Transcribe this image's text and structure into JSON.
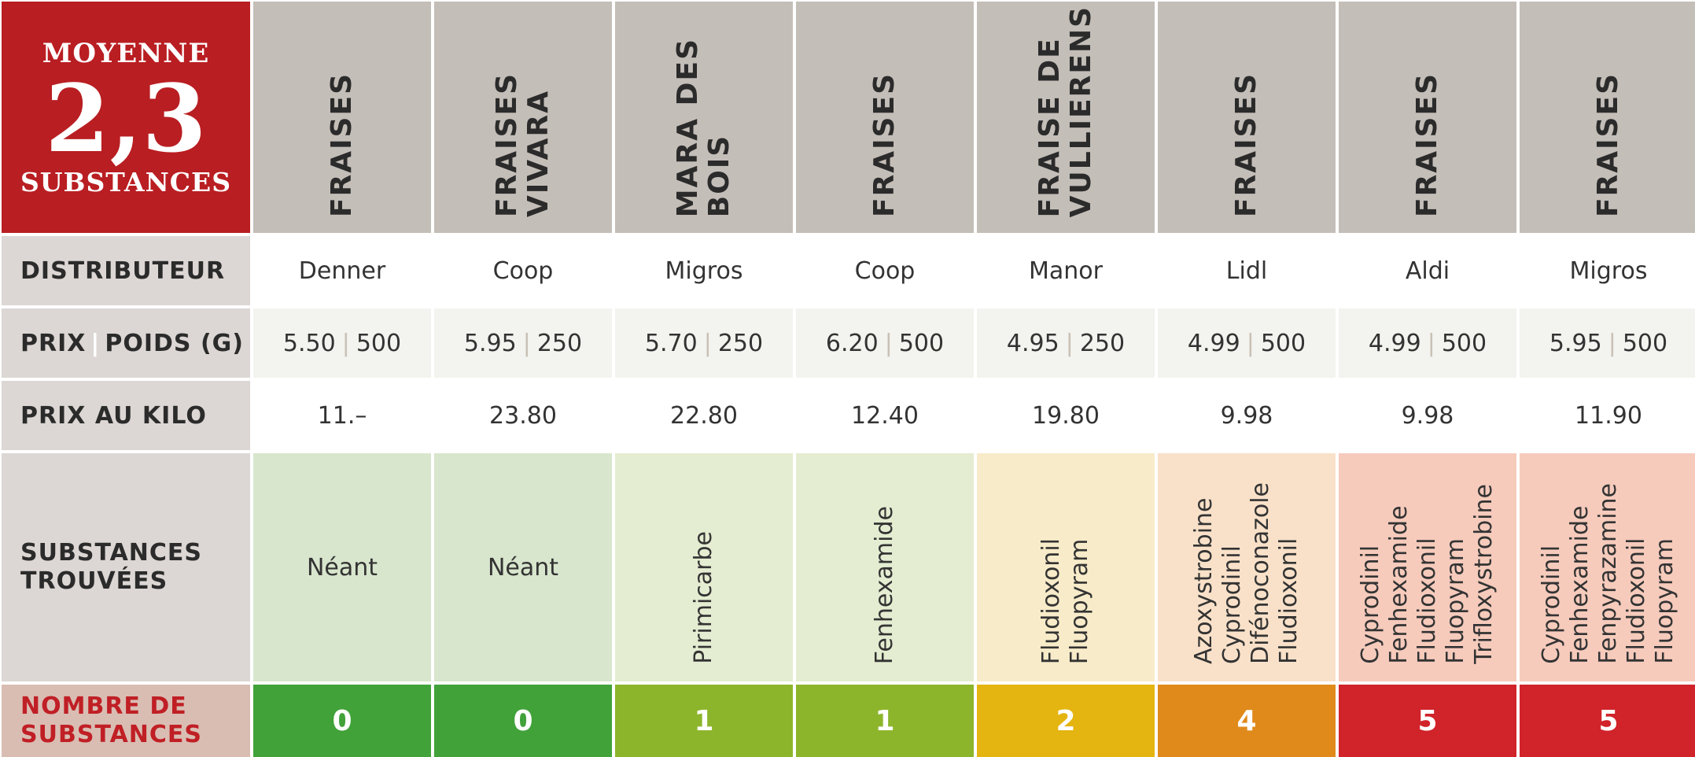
{
  "corner": {
    "line1": "MOYENNE",
    "value": "2,3",
    "line2": "SUBSTANCES"
  },
  "row_labels": {
    "distributeur": "DISTRIBUTEUR",
    "prix_poids_a": "PRIX",
    "prix_poids_sep": "|",
    "prix_poids_b": "POIDS (G)",
    "prix_kilo": "PRIX AU KILO",
    "substances_a": "SUBSTANCES",
    "substances_b": "TROUVÉES",
    "nombre_a": "NOMBRE DE",
    "nombre_b": "SUBSTANCES"
  },
  "price_sep": "|",
  "products": [
    {
      "name": [
        "FRAISES"
      ],
      "distributeur": "Denner",
      "prix": "5.50",
      "poids": "500",
      "kilo": "11.–",
      "substances": [],
      "neant": "Néant",
      "count": "0",
      "color": "#41a23a",
      "bg": "#d8e6cd"
    },
    {
      "name": [
        "FRAISES",
        "VIVARA"
      ],
      "distributeur": "Coop",
      "prix": "5.95",
      "poids": "250",
      "kilo": "23.80",
      "substances": [],
      "neant": "Néant",
      "count": "0",
      "color": "#41a23a",
      "bg": "#d8e6cd"
    },
    {
      "name": [
        "MARA DES",
        "BOIS"
      ],
      "distributeur": "Migros",
      "prix": "5.70",
      "poids": "250",
      "kilo": "22.80",
      "substances": [
        "Pirimicarbe"
      ],
      "neant": "",
      "count": "1",
      "color": "#8db52c",
      "bg": "#e4edd1"
    },
    {
      "name": [
        "FRAISES"
      ],
      "distributeur": "Coop",
      "prix": "6.20",
      "poids": "500",
      "kilo": "12.40",
      "substances": [
        "Fenhexamide"
      ],
      "neant": "",
      "count": "1",
      "color": "#8db52c",
      "bg": "#e4edd1"
    },
    {
      "name": [
        "FRAISE DE",
        "VULLIERENS"
      ],
      "distributeur": "Manor",
      "prix": "4.95",
      "poids": "250",
      "kilo": "19.80",
      "substances": [
        "Fludioxonil",
        "Fluopyram"
      ],
      "neant": "",
      "count": "2",
      "color": "#e4b410",
      "bg": "#f8ebc9"
    },
    {
      "name": [
        "FRAISES"
      ],
      "distributeur": "Lidl",
      "prix": "4.99",
      "poids": "500",
      "kilo": "9.98",
      "substances": [
        "Azoxystrobine",
        "Cyprodinil",
        "Difénoconazole",
        "Fludioxonil"
      ],
      "neant": "",
      "count": "4",
      "color": "#e08a1b",
      "bg": "#f9e1c9"
    },
    {
      "name": [
        "FRAISES"
      ],
      "distributeur": "Aldi",
      "prix": "4.99",
      "poids": "500",
      "kilo": "9.98",
      "substances": [
        "Cyprodinil",
        "Fenhexamide",
        "Fludioxonil",
        "Fluopyram",
        "Trifloxystrobine"
      ],
      "neant": "",
      "count": "5",
      "color": "#d1232a",
      "bg": "#f6cbbc"
    },
    {
      "name": [
        "FRAISES"
      ],
      "distributeur": "Migros",
      "prix": "5.95",
      "poids": "500",
      "kilo": "11.90",
      "substances": [
        "Cyprodinil",
        "Fenhexamide",
        "Fenpyrazamine",
        "Fludioxonil",
        "Fluopyram"
      ],
      "neant": "",
      "count": "5",
      "color": "#d1232a",
      "bg": "#f6cbbc"
    }
  ]
}
